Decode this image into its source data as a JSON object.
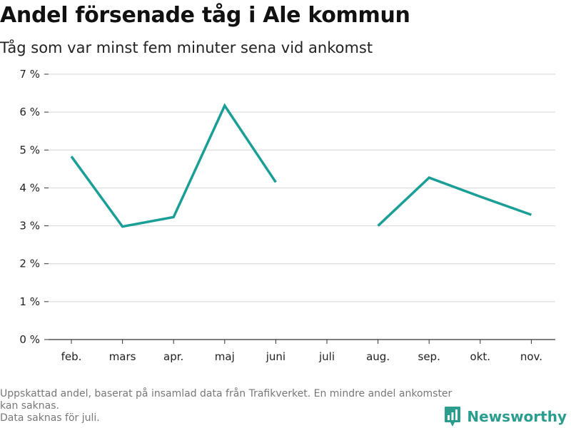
{
  "header": {
    "title": "Andel försenade tåg i Ale kommun",
    "subtitle": "Tåg som var minst fem minuter sena vid ankomst"
  },
  "chart_data": {
    "type": "line",
    "categories": [
      "feb.",
      "mars",
      "apr.",
      "maj",
      "juni",
      "juli",
      "aug.",
      "sep.",
      "okt.",
      "nov."
    ],
    "series": [
      {
        "values": [
          4.83,
          2.98,
          3.23,
          6.17,
          4.15,
          null,
          3.0,
          4.27,
          3.77,
          3.29
        ],
        "color": "#1a9e96"
      }
    ],
    "y_ticks": [
      0,
      1,
      2,
      3,
      4,
      5,
      6,
      7
    ],
    "y_tick_suffix": " %",
    "ylim": [
      0,
      7
    ],
    "grid": true
  },
  "footer": {
    "note_line1": "Uppskattad andel, baserat på insamlad data från Trafikverket. En mindre andel ankomster kan saknas.",
    "note_line2": "Data saknas för juli.",
    "brand": "Newsworthy",
    "brand_icon": "bar-chart-logo-icon",
    "brand_color": "#2a9d8f"
  }
}
